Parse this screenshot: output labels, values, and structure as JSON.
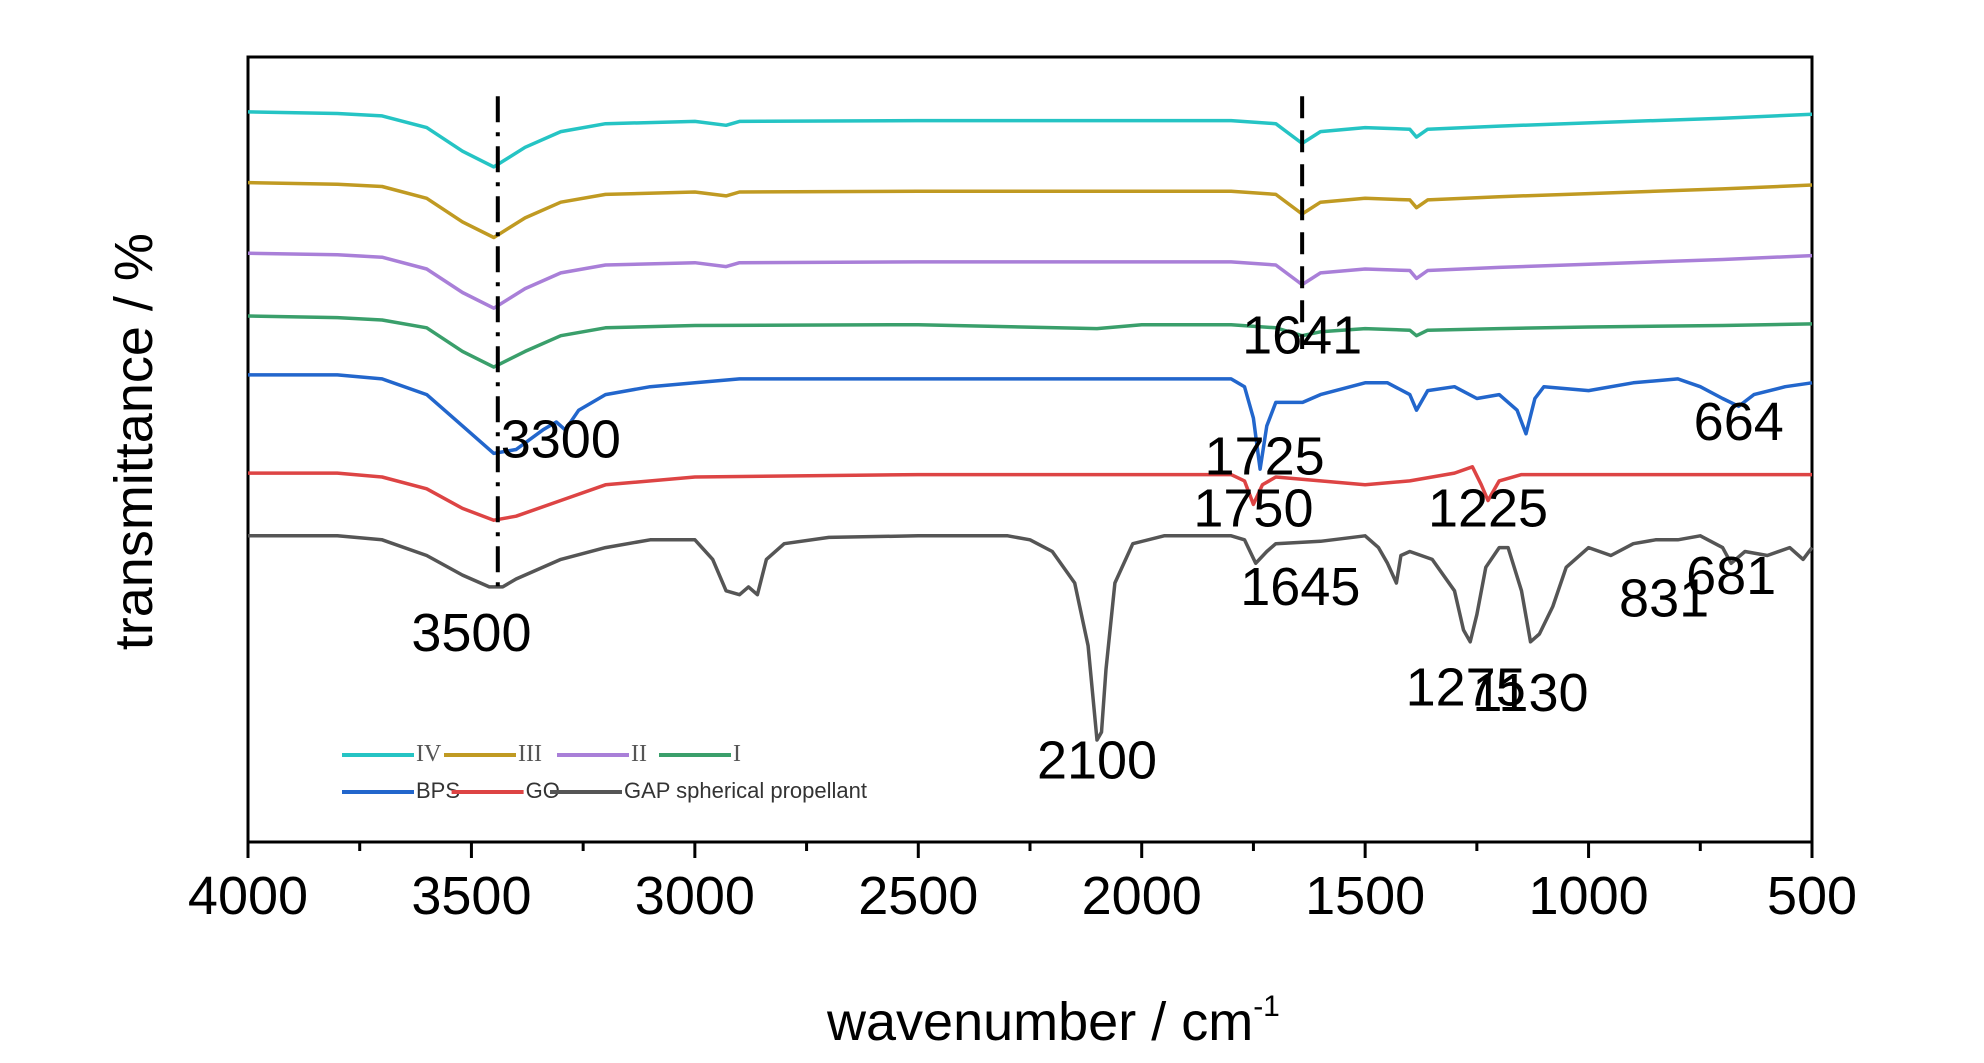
{
  "chart_data": {
    "type": "line",
    "xlabel": "wavenumber / cm",
    "xlabel_sup": "-1",
    "ylabel": "transmittance / %",
    "xlim": [
      4000,
      500
    ],
    "x_reversed": true,
    "x_ticks": [
      4000,
      3500,
      3000,
      2500,
      2000,
      1500,
      1000,
      500
    ],
    "x_tick_labels": [
      "4000",
      "3500",
      "3000",
      "2500",
      "2000",
      "1500",
      "1000",
      "500"
    ],
    "ylim": [
      0,
      100
    ],
    "y_ticks_shown": false,
    "grid": false,
    "legend_position": "bottom-left",
    "series": [
      {
        "name": "IV",
        "color": "#25c4c4",
        "points": [
          [
            4000,
            93
          ],
          [
            3800,
            92.8
          ],
          [
            3700,
            92.5
          ],
          [
            3600,
            91
          ],
          [
            3520,
            88
          ],
          [
            3450,
            86
          ],
          [
            3380,
            88.5
          ],
          [
            3300,
            90.5
          ],
          [
            3200,
            91.5
          ],
          [
            3000,
            91.8
          ],
          [
            2930,
            91.3
          ],
          [
            2900,
            91.8
          ],
          [
            2500,
            91.9
          ],
          [
            2000,
            91.9
          ],
          [
            1800,
            91.9
          ],
          [
            1700,
            91.5
          ],
          [
            1641,
            89
          ],
          [
            1600,
            90.5
          ],
          [
            1500,
            91
          ],
          [
            1400,
            90.8
          ],
          [
            1385,
            89.8
          ],
          [
            1360,
            90.8
          ],
          [
            1200,
            91.2
          ],
          [
            1000,
            91.6
          ],
          [
            700,
            92.2
          ],
          [
            500,
            92.7
          ]
        ]
      },
      {
        "name": "III",
        "color": "#c09a22",
        "points": [
          [
            4000,
            84
          ],
          [
            3800,
            83.8
          ],
          [
            3700,
            83.5
          ],
          [
            3600,
            82
          ],
          [
            3520,
            79
          ],
          [
            3450,
            77
          ],
          [
            3380,
            79.5
          ],
          [
            3300,
            81.5
          ],
          [
            3200,
            82.5
          ],
          [
            3000,
            82.8
          ],
          [
            2930,
            82.3
          ],
          [
            2900,
            82.8
          ],
          [
            2500,
            82.9
          ],
          [
            2000,
            82.9
          ],
          [
            1800,
            82.9
          ],
          [
            1700,
            82.5
          ],
          [
            1641,
            80
          ],
          [
            1600,
            81.5
          ],
          [
            1500,
            82
          ],
          [
            1400,
            81.8
          ],
          [
            1385,
            80.8
          ],
          [
            1360,
            81.8
          ],
          [
            1200,
            82.2
          ],
          [
            1000,
            82.6
          ],
          [
            700,
            83.2
          ],
          [
            500,
            83.7
          ]
        ]
      },
      {
        "name": "II",
        "color": "#a97fd8",
        "points": [
          [
            4000,
            75
          ],
          [
            3800,
            74.8
          ],
          [
            3700,
            74.5
          ],
          [
            3600,
            73
          ],
          [
            3520,
            70
          ],
          [
            3450,
            68
          ],
          [
            3380,
            70.5
          ],
          [
            3300,
            72.5
          ],
          [
            3200,
            73.5
          ],
          [
            3000,
            73.8
          ],
          [
            2930,
            73.3
          ],
          [
            2900,
            73.8
          ],
          [
            2500,
            73.9
          ],
          [
            2000,
            73.9
          ],
          [
            1800,
            73.9
          ],
          [
            1700,
            73.5
          ],
          [
            1641,
            71
          ],
          [
            1600,
            72.5
          ],
          [
            1500,
            73
          ],
          [
            1400,
            72.8
          ],
          [
            1385,
            71.8
          ],
          [
            1360,
            72.8
          ],
          [
            1200,
            73.2
          ],
          [
            1000,
            73.6
          ],
          [
            700,
            74.2
          ],
          [
            500,
            74.7
          ]
        ]
      },
      {
        "name": "I",
        "color": "#3a9f6b",
        "points": [
          [
            4000,
            67
          ],
          [
            3800,
            66.8
          ],
          [
            3700,
            66.5
          ],
          [
            3600,
            65.5
          ],
          [
            3520,
            62.5
          ],
          [
            3450,
            60.5
          ],
          [
            3380,
            62.5
          ],
          [
            3300,
            64.5
          ],
          [
            3200,
            65.5
          ],
          [
            3000,
            65.8
          ],
          [
            2500,
            65.9
          ],
          [
            2100,
            65.4
          ],
          [
            2000,
            65.9
          ],
          [
            1800,
            65.9
          ],
          [
            1700,
            65.5
          ],
          [
            1641,
            64.5
          ],
          [
            1600,
            65
          ],
          [
            1500,
            65.4
          ],
          [
            1400,
            65.2
          ],
          [
            1385,
            64.5
          ],
          [
            1360,
            65.2
          ],
          [
            1200,
            65.4
          ],
          [
            1000,
            65.6
          ],
          [
            700,
            65.8
          ],
          [
            500,
            66
          ]
        ]
      },
      {
        "name": "BPS",
        "color": "#2266cc",
        "points": [
          [
            4000,
            59.5
          ],
          [
            3800,
            59.5
          ],
          [
            3700,
            59
          ],
          [
            3600,
            57
          ],
          [
            3520,
            53
          ],
          [
            3450,
            49.5
          ],
          [
            3400,
            50
          ],
          [
            3340,
            52.5
          ],
          [
            3310,
            53.5
          ],
          [
            3290,
            52.5
          ],
          [
            3260,
            55
          ],
          [
            3200,
            57
          ],
          [
            3100,
            58
          ],
          [
            3000,
            58.5
          ],
          [
            2900,
            59
          ],
          [
            2500,
            59
          ],
          [
            2100,
            59
          ],
          [
            1800,
            59
          ],
          [
            1770,
            58
          ],
          [
            1750,
            54
          ],
          [
            1735,
            47.5
          ],
          [
            1720,
            53
          ],
          [
            1700,
            56
          ],
          [
            1640,
            56
          ],
          [
            1600,
            57
          ],
          [
            1500,
            58.5
          ],
          [
            1450,
            58.5
          ],
          [
            1400,
            57
          ],
          [
            1385,
            55
          ],
          [
            1360,
            57.5
          ],
          [
            1300,
            58
          ],
          [
            1250,
            56.5
          ],
          [
            1200,
            57
          ],
          [
            1160,
            55
          ],
          [
            1140,
            52
          ],
          [
            1120,
            56.5
          ],
          [
            1100,
            58
          ],
          [
            1000,
            57.5
          ],
          [
            900,
            58.5
          ],
          [
            800,
            59
          ],
          [
            750,
            58
          ],
          [
            700,
            56.5
          ],
          [
            664,
            55.5
          ],
          [
            630,
            57
          ],
          [
            560,
            58
          ],
          [
            500,
            58.5
          ]
        ]
      },
      {
        "name": "GO",
        "color": "#dd4444",
        "points": [
          [
            4000,
            47
          ],
          [
            3800,
            47
          ],
          [
            3700,
            46.5
          ],
          [
            3600,
            45
          ],
          [
            3520,
            42.5
          ],
          [
            3450,
            41
          ],
          [
            3400,
            41.5
          ],
          [
            3300,
            43.5
          ],
          [
            3200,
            45.5
          ],
          [
            3000,
            46.5
          ],
          [
            2500,
            46.8
          ],
          [
            2000,
            46.8
          ],
          [
            1800,
            46.8
          ],
          [
            1770,
            46
          ],
          [
            1750,
            43
          ],
          [
            1730,
            45.5
          ],
          [
            1700,
            46.5
          ],
          [
            1600,
            46
          ],
          [
            1500,
            45.5
          ],
          [
            1400,
            46
          ],
          [
            1300,
            47
          ],
          [
            1260,
            47.8
          ],
          [
            1240,
            45.5
          ],
          [
            1225,
            43.5
          ],
          [
            1200,
            46
          ],
          [
            1150,
            46.8
          ],
          [
            1000,
            46.8
          ],
          [
            800,
            46.8
          ],
          [
            500,
            46.8
          ]
        ]
      },
      {
        "name": "GAP spherical propellant",
        "color": "#555555",
        "points": [
          [
            4000,
            39
          ],
          [
            3800,
            39
          ],
          [
            3700,
            38.5
          ],
          [
            3600,
            36.5
          ],
          [
            3520,
            34
          ],
          [
            3460,
            32.5
          ],
          [
            3430,
            32.5
          ],
          [
            3400,
            33.5
          ],
          [
            3300,
            36
          ],
          [
            3200,
            37.5
          ],
          [
            3100,
            38.5
          ],
          [
            3000,
            38.5
          ],
          [
            2960,
            36
          ],
          [
            2930,
            32
          ],
          [
            2900,
            31.5
          ],
          [
            2880,
            32.5
          ],
          [
            2860,
            31.5
          ],
          [
            2840,
            36
          ],
          [
            2800,
            38
          ],
          [
            2700,
            38.8
          ],
          [
            2500,
            39
          ],
          [
            2300,
            39
          ],
          [
            2250,
            38.5
          ],
          [
            2200,
            37
          ],
          [
            2150,
            33
          ],
          [
            2120,
            25
          ],
          [
            2100,
            13
          ],
          [
            2090,
            14
          ],
          [
            2080,
            22
          ],
          [
            2060,
            33
          ],
          [
            2020,
            38
          ],
          [
            1950,
            39
          ],
          [
            1800,
            39
          ],
          [
            1770,
            38.5
          ],
          [
            1745,
            35.5
          ],
          [
            1720,
            37
          ],
          [
            1700,
            38
          ],
          [
            1600,
            38.3
          ],
          [
            1500,
            39
          ],
          [
            1470,
            37.5
          ],
          [
            1450,
            35.5
          ],
          [
            1430,
            33
          ],
          [
            1420,
            36.5
          ],
          [
            1400,
            37
          ],
          [
            1350,
            36
          ],
          [
            1300,
            32
          ],
          [
            1280,
            27
          ],
          [
            1265,
            25.5
          ],
          [
            1250,
            29
          ],
          [
            1230,
            35
          ],
          [
            1200,
            37.5
          ],
          [
            1180,
            37.5
          ],
          [
            1150,
            32
          ],
          [
            1130,
            25.5
          ],
          [
            1110,
            26.5
          ],
          [
            1080,
            30
          ],
          [
            1050,
            35
          ],
          [
            1000,
            37.5
          ],
          [
            950,
            36.5
          ],
          [
            900,
            38
          ],
          [
            850,
            38.5
          ],
          [
            800,
            38.5
          ],
          [
            750,
            39
          ],
          [
            700,
            37.5
          ],
          [
            681,
            35.5
          ],
          [
            650,
            37
          ],
          [
            600,
            36.5
          ],
          [
            550,
            37.5
          ],
          [
            520,
            36
          ],
          [
            500,
            37.5
          ]
        ]
      }
    ],
    "legend_rows": [
      [
        "IV",
        "III",
        "II",
        "I"
      ],
      [
        "BPS",
        "GO",
        "GAP spherical propellant"
      ]
    ],
    "reference_lines": [
      {
        "x": 3441,
        "style": "dash-dot",
        "color": "#000000"
      },
      {
        "x": 1641,
        "style": "dashed",
        "color": "#000000"
      }
    ],
    "annotations": [
      {
        "text": "1641",
        "x": 1641,
        "y": 62.2
      },
      {
        "text": "3300",
        "x": 3300,
        "y": 49
      },
      {
        "text": "1725",
        "x": 1725,
        "y": 46.8
      },
      {
        "text": "664",
        "x": 664,
        "y": 51.2
      },
      {
        "text": "1750",
        "x": 1750,
        "y": 40.2
      },
      {
        "text": "1225",
        "x": 1225,
        "y": 40.2
      },
      {
        "text": "1645",
        "x": 1645,
        "y": 30.2
      },
      {
        "text": "681",
        "x": 681,
        "y": 31.6
      },
      {
        "text": "831",
        "x": 831,
        "y": 28.7
      },
      {
        "text": "3500",
        "x": 3500,
        "y": 24.3
      },
      {
        "text": "1275",
        "x": 1275,
        "y": 17.4
      },
      {
        "text": "1130",
        "x": 1130,
        "y": 16.7
      },
      {
        "text": "2100",
        "x": 2100,
        "y": 8.1
      }
    ]
  }
}
